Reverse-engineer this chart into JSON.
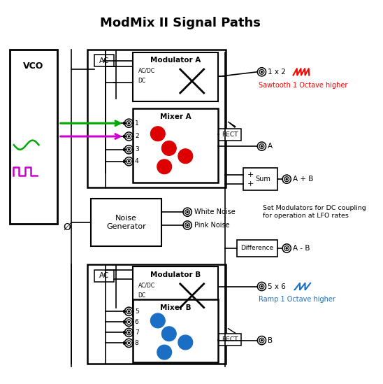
{
  "title": "ModMix II Signal Paths",
  "title_fontsize": 13,
  "bg_color": "#ffffff",
  "fg_color": "#000000",
  "sawtooth_label": "Sawtooth 1 Octave higher",
  "ramp_label": "Ramp 1 Octave higher",
  "lfo_label": "Set Modulators for DC coupling\nfor operation at LFO rates",
  "vco_label": "VCO",
  "noise_label": "Noise\nGenerator",
  "white_noise_label": "White Noise",
  "pink_noise_label": "Pink Noise",
  "modA_label": "Modulator A",
  "modB_label": "Modulator B",
  "mixerA_label": "Mixer A",
  "mixerB_label": "Mixer B",
  "ac_label": "AC",
  "acdc_label": "AC/DC",
  "dc_label": "DC",
  "rect_label": "RECT",
  "sum_label": "Sum",
  "diff_label": "Difference",
  "label_1x2": "1 x 2",
  "label_5x6": "5 x 6",
  "label_A": "A",
  "label_B": "B",
  "label_ApB": "A + B",
  "label_AmB": "A - B",
  "label_phi": "Ø",
  "red_color": "#ff0000",
  "blue_color": "#1a6fc4",
  "green_arrow": "#00aa00",
  "magenta_arrow": "#cc00cc",
  "red_dot_color": "#dd0000",
  "blue_dot_color": "#1a6fc4",
  "lw": 1.2,
  "lw2": 1.8
}
